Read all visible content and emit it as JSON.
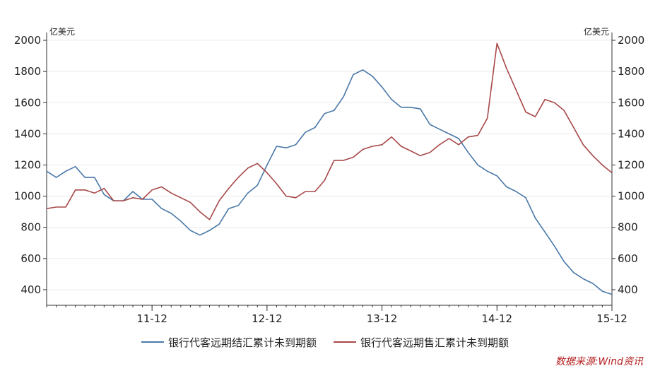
{
  "chart_data": {
    "type": "line",
    "left_unit": "亿美元",
    "right_unit": "亿美元",
    "ylim": [
      300,
      2050
    ],
    "y_ticks": [
      400,
      600,
      800,
      1000,
      1200,
      1400,
      1600,
      1800,
      2000
    ],
    "y_tick_labels": [
      "400",
      "600",
      "800",
      "1000",
      "1200",
      "1400",
      "1600",
      "1800",
      "2000"
    ],
    "x_range": [
      "2011-01",
      "2015-12"
    ],
    "x_ticks": [
      "2011-12",
      "2012-12",
      "2013-12",
      "2014-12",
      "2015-12"
    ],
    "x_tick_labels": [
      "11-12",
      "12-12",
      "13-12",
      "14-12",
      "15-12"
    ],
    "grid": true,
    "legend_position": "bottom",
    "series": [
      {
        "name": "银行代客远期结汇累计未到期额",
        "color": "#4a78a8",
        "x": [
          "2011-01",
          "2011-02",
          "2011-03",
          "2011-04",
          "2011-05",
          "2011-06",
          "2011-07",
          "2011-08",
          "2011-09",
          "2011-10",
          "2011-11",
          "2011-12",
          "2012-01",
          "2012-02",
          "2012-03",
          "2012-04",
          "2012-05",
          "2012-06",
          "2012-07",
          "2012-08",
          "2012-09",
          "2012-10",
          "2012-11",
          "2012-12",
          "2013-01",
          "2013-02",
          "2013-03",
          "2013-04",
          "2013-05",
          "2013-06",
          "2013-07",
          "2013-08",
          "2013-09",
          "2013-10",
          "2013-11",
          "2013-12",
          "2014-01",
          "2014-02",
          "2014-03",
          "2014-04",
          "2014-05",
          "2014-06",
          "2014-07",
          "2014-08",
          "2014-09",
          "2014-10",
          "2014-11",
          "2014-12",
          "2015-01",
          "2015-02",
          "2015-03",
          "2015-04",
          "2015-05",
          "2015-06",
          "2015-07",
          "2015-08",
          "2015-09",
          "2015-10",
          "2015-11",
          "2015-12"
        ],
        "values": [
          1160,
          1120,
          1160,
          1190,
          1120,
          1120,
          1010,
          970,
          970,
          1030,
          980,
          980,
          920,
          890,
          840,
          780,
          750,
          780,
          820,
          920,
          940,
          1020,
          1070,
          1200,
          1320,
          1310,
          1330,
          1410,
          1440,
          1530,
          1550,
          1640,
          1780,
          1810,
          1770,
          1700,
          1620,
          1570,
          1570,
          1560,
          1460,
          1430,
          1400,
          1370,
          1280,
          1200,
          1160,
          1130,
          1060,
          1030,
          990,
          860,
          770,
          680,
          580,
          510,
          470,
          440,
          390,
          370
        ]
      },
      {
        "name": "银行代客远期售汇累计未到期额",
        "color": "#a84848",
        "x": [
          "2011-01",
          "2011-02",
          "2011-03",
          "2011-04",
          "2011-05",
          "2011-06",
          "2011-07",
          "2011-08",
          "2011-09",
          "2011-10",
          "2011-11",
          "2011-12",
          "2012-01",
          "2012-02",
          "2012-03",
          "2012-04",
          "2012-05",
          "2012-06",
          "2012-07",
          "2012-08",
          "2012-09",
          "2012-10",
          "2012-11",
          "2012-12",
          "2013-01",
          "2013-02",
          "2013-03",
          "2013-04",
          "2013-05",
          "2013-06",
          "2013-07",
          "2013-08",
          "2013-09",
          "2013-10",
          "2013-11",
          "2013-12",
          "2014-01",
          "2014-02",
          "2014-03",
          "2014-04",
          "2014-05",
          "2014-06",
          "2014-07",
          "2014-08",
          "2014-09",
          "2014-10",
          "2014-11",
          "2014-12",
          "2015-01",
          "2015-02",
          "2015-03",
          "2015-04",
          "2015-05",
          "2015-06",
          "2015-07",
          "2015-08",
          "2015-09",
          "2015-10",
          "2015-11",
          "2015-12"
        ],
        "values": [
          920,
          930,
          930,
          1040,
          1040,
          1020,
          1050,
          970,
          970,
          990,
          980,
          1040,
          1060,
          1020,
          990,
          960,
          900,
          850,
          970,
          1050,
          1120,
          1180,
          1210,
          1150,
          1080,
          1000,
          990,
          1030,
          1030,
          1100,
          1230,
          1230,
          1250,
          1300,
          1320,
          1330,
          1380,
          1320,
          1290,
          1260,
          1280,
          1330,
          1370,
          1330,
          1380,
          1390,
          1500,
          1980,
          1820,
          1680,
          1540,
          1510,
          1620,
          1600,
          1550,
          1440,
          1330,
          1260,
          1200,
          1150
        ]
      }
    ]
  },
  "source_note": "数据来源:Wind资讯"
}
